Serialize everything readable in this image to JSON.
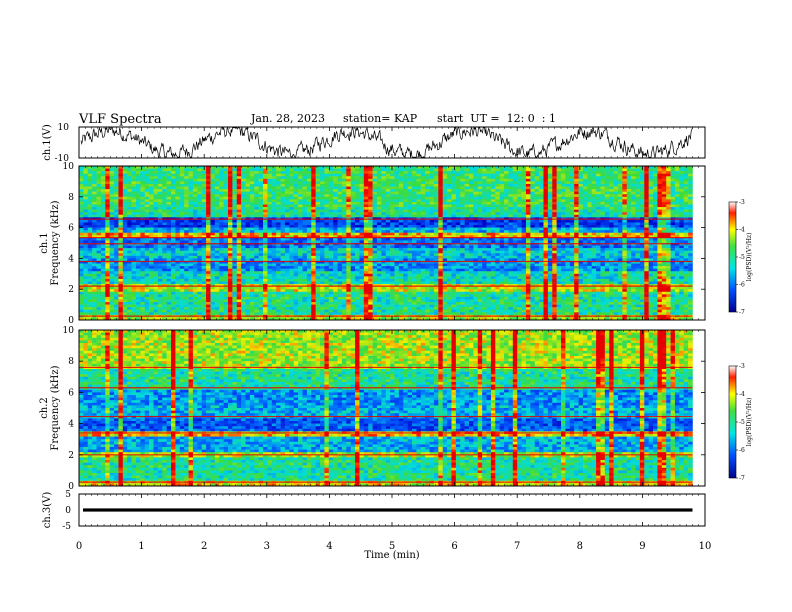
{
  "header": {
    "title": "VLF Spectra",
    "date": "Jan. 28, 2023",
    "station": "station= KAP",
    "start": "start  UT =  12: 0  : 1"
  },
  "chart_data": [
    {
      "type": "line",
      "panel": "ch1-waveform",
      "ylabel": "ch.1(V)",
      "ylim": [
        -10,
        10
      ],
      "yticks": [
        "10",
        "-10"
      ],
      "xlim": [
        0,
        10
      ]
    },
    {
      "type": "heatmap",
      "panel": "ch1-spectrogram",
      "ylabel": "ch.1 Frequency (kHz)",
      "ylim": [
        0,
        10
      ],
      "yticks": [
        "0",
        "2",
        "4",
        "6",
        "8",
        "10"
      ],
      "xlim": [
        0,
        9.8
      ],
      "colorbar": {
        "label": "log(PSD)(V²/Hz)",
        "range": [
          -7,
          -3
        ],
        "ticks": [
          "-3",
          "-4",
          "-5",
          "-6",
          "-7"
        ]
      }
    },
    {
      "type": "heatmap",
      "panel": "ch2-spectrogram",
      "ylabel": "ch.2 Frequency (kHz)",
      "ylim": [
        0,
        10
      ],
      "yticks": [
        "0",
        "2",
        "4",
        "6",
        "8",
        "10"
      ],
      "xlim": [
        0,
        9.8
      ],
      "colorbar": {
        "label": "log(PSD)(V²/Hz)",
        "range": [
          -7,
          -3
        ],
        "ticks": [
          "-3",
          "-4",
          "-5",
          "-6",
          "-7"
        ]
      }
    },
    {
      "type": "line",
      "panel": "ch3-waveform",
      "ylabel": "ch.3(V)",
      "ylim": [
        -5,
        5
      ],
      "yticks": [
        "5",
        "0",
        "-5"
      ],
      "xlim": [
        0,
        10
      ]
    }
  ],
  "xaxis": {
    "label": "Time (min)",
    "ticks": [
      "0",
      "1",
      "2",
      "3",
      "4",
      "5",
      "6",
      "7",
      "8",
      "9",
      "10"
    ]
  },
  "colors": {
    "low": "#0000c8",
    "mid": "#00c8b4",
    "high": "#e60000"
  }
}
